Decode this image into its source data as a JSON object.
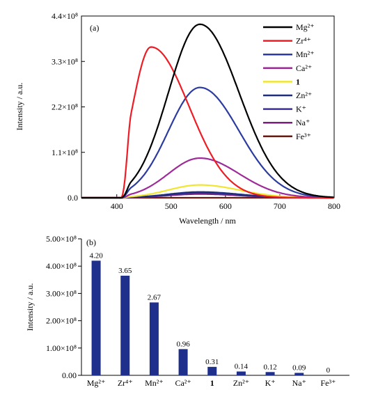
{
  "chart_data": [
    {
      "type": "line",
      "panel_label": "(a)",
      "xlabel": "Wavelength / nm",
      "ylabel": "Intensity / a.u.",
      "xlim": [
        335,
        800
      ],
      "ylim": [
        0,
        440000000.0
      ],
      "x_ticks": [
        400,
        500,
        600,
        700,
        800
      ],
      "x_tick_labels": [
        "400",
        "500",
        "600",
        "700",
        "800"
      ],
      "y_ticks": [
        0,
        110000000.0,
        220000000.0,
        330000000.0,
        440000000.0
      ],
      "y_tick_labels": [
        "0.0",
        "1.1×10⁸",
        "2.2×10⁸",
        "3.3×10⁸",
        "4.4×10⁸"
      ],
      "legend_position": "right",
      "series": [
        {
          "name": "Mg²⁺",
          "bold": false,
          "color": "#000000",
          "peak": 420000000.0,
          "center": 553,
          "onset": 408,
          "width": 62
        },
        {
          "name": "Zr⁴⁺",
          "bold": false,
          "color": "#ee1c24",
          "peak": 365000000.0,
          "center": 463,
          "onset": 408,
          "width": 55
        },
        {
          "name": "Mn²⁺",
          "bold": false,
          "color": "#2b3ba0",
          "peak": 267000000.0,
          "center": 553,
          "onset": 408,
          "width": 62
        },
        {
          "name": "Ca²⁺",
          "bold": false,
          "color": "#9e2a9a",
          "peak": 96000000.0,
          "center": 553,
          "onset": 408,
          "width": 62
        },
        {
          "name": "1",
          "bold": true,
          "color": "#f2e530",
          "peak": 31000000.0,
          "center": 553,
          "onset": 408,
          "width": 62
        },
        {
          "name": "Zn²⁺",
          "bold": false,
          "color": "#1d2f7a",
          "peak": 14000000.0,
          "center": 553,
          "onset": 408,
          "width": 62
        },
        {
          "name": "K⁺",
          "bold": false,
          "color": "#3a2f9c",
          "peak": 12000000.0,
          "center": 553,
          "onset": 408,
          "width": 62
        },
        {
          "name": "Na⁺",
          "bold": false,
          "color": "#7a1f7e",
          "peak": 9000000.0,
          "center": 553,
          "onset": 408,
          "width": 62
        },
        {
          "name": "Fe³⁺",
          "bold": false,
          "color": "#6b1a12",
          "peak": 0.0,
          "center": 553,
          "onset": 408,
          "width": 62
        }
      ]
    },
    {
      "type": "bar",
      "panel_label": "(b)",
      "xlabel": "",
      "ylabel": "Intensity / a.u.",
      "ylim": [
        0,
        500000000.0
      ],
      "y_ticks": [
        0,
        100000000.0,
        200000000.0,
        300000000.0,
        400000000.0,
        500000000.0
      ],
      "y_tick_labels": [
        "0.00",
        "1.00×10⁸",
        "2.00×10⁸",
        "3.00×10⁸",
        "4.00×10⁸",
        "5.00×10⁸"
      ],
      "bar_color": "#1f2f8c",
      "categories": [
        "Mg²⁺",
        "Zr⁴⁺",
        "Mn²⁺",
        "Ca²⁺",
        "1",
        "Zn²⁺",
        "K⁺",
        "Na⁺",
        "Fe³⁺"
      ],
      "bold_categories": [
        "1"
      ],
      "values": [
        420000000.0,
        365000000.0,
        267000000.0,
        96000000.0,
        31000000.0,
        14000000.0,
        12000000.0,
        9000000.0,
        0
      ],
      "data_labels": [
        "4.20",
        "3.65",
        "2.67",
        "0.96",
        "0.31",
        "0.14",
        "0.12",
        "0.09",
        "0"
      ]
    }
  ]
}
